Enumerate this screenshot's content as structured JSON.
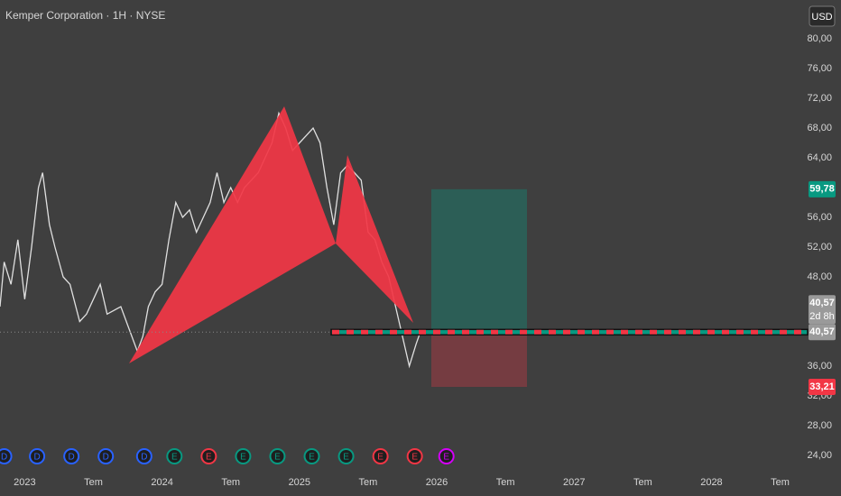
{
  "chart_data": {
    "type": "line",
    "title": "Kemper Corporation · 1H · NYSE",
    "currency": "USD",
    "color": "#e0e0e0",
    "x": [
      2022.82,
      2022.85,
      2022.9,
      2022.95,
      2023.0,
      2023.05,
      2023.1,
      2023.13,
      2023.18,
      2023.22,
      2023.28,
      2023.33,
      2023.4,
      2023.45,
      2023.5,
      2023.55,
      2023.6,
      2023.7,
      2023.78,
      2023.82,
      2023.86,
      2023.9,
      2023.95,
      2024.0,
      2024.05,
      2024.1,
      2024.15,
      2024.2,
      2024.25,
      2024.3,
      2024.35,
      2024.4,
      2024.45,
      2024.5,
      2024.55,
      2024.6,
      2024.7,
      2024.8,
      2024.85,
      2024.9,
      2024.95,
      2025.0,
      2025.05,
      2025.1,
      2025.15,
      2025.2,
      2025.25,
      2025.3,
      2025.35,
      2025.4,
      2025.45,
      2025.5,
      2025.55,
      2025.6,
      2025.65,
      2025.7,
      2025.75,
      2025.8,
      2025.85,
      2025.88
    ],
    "values": [
      44,
      50,
      47,
      53,
      45,
      52,
      60,
      62,
      55,
      52,
      48,
      47,
      42,
      43,
      45,
      47,
      43,
      44,
      40,
      38,
      40,
      44,
      46,
      47,
      53,
      58,
      56,
      57,
      54,
      56,
      58,
      62,
      58,
      60,
      58,
      60,
      62,
      66,
      70,
      68,
      65,
      66,
      67,
      68,
      66,
      60,
      55,
      62,
      63,
      62,
      61,
      54,
      53,
      50,
      48,
      44,
      40,
      36,
      39,
      40.57
    ],
    "xlim": [
      2022.82,
      2028.7
    ],
    "ylim": [
      24,
      80
    ],
    "xticks": [
      2023,
      {
        "value": 2023.5,
        "label": "Tem"
      },
      2024,
      {
        "value": 2024.5,
        "label": "Tem"
      },
      2025,
      {
        "value": 2025.5,
        "label": "Tem"
      },
      2026,
      {
        "value": 2026.5,
        "label": "Tem"
      },
      2027,
      {
        "value": 2027.5,
        "label": "Tem"
      },
      2028,
      {
        "value": 2028.5,
        "label": "Tem"
      }
    ],
    "yticks": [
      {
        "value": 80,
        "label": "80,00"
      },
      {
        "value": 76,
        "label": "76,00"
      },
      {
        "value": 72,
        "label": "72,00"
      },
      {
        "value": 68,
        "label": "68,00"
      },
      {
        "value": 64,
        "label": "64,00"
      },
      {
        "value": 56,
        "label": "56,00"
      },
      {
        "value": 52,
        "label": "52,00"
      },
      {
        "value": 48,
        "label": "48,00"
      },
      {
        "value": 36,
        "label": "36,00"
      },
      {
        "value": 32,
        "label": "32,00"
      },
      {
        "value": 28,
        "label": "28,00"
      },
      {
        "value": 24,
        "label": "24,00"
      }
    ],
    "target": {
      "value": 59.78,
      "label": "59,78"
    },
    "stop": {
      "value": 33.21,
      "label": "33,21"
    },
    "last": {
      "value": 40.57,
      "label": "40,57"
    },
    "countdown": "2d 8h",
    "events": [
      {
        "t": 2022.85,
        "label": "D",
        "color": "#2962ff"
      },
      {
        "t": 2023.09,
        "label": "D",
        "color": "#2962ff"
      },
      {
        "t": 2023.34,
        "label": "D",
        "color": "#2962ff"
      },
      {
        "t": 2023.59,
        "label": "D",
        "color": "#2962ff"
      },
      {
        "t": 2023.87,
        "label": "D",
        "color": "#2962ff"
      },
      {
        "t": 2024.09,
        "label": "E",
        "color": "#089981"
      },
      {
        "t": 2024.34,
        "label": "E",
        "color": "#f23645"
      },
      {
        "t": 2024.59,
        "label": "E",
        "color": "#089981"
      },
      {
        "t": 2024.84,
        "label": "E",
        "color": "#089981"
      },
      {
        "t": 2025.09,
        "label": "E",
        "color": "#089981"
      },
      {
        "t": 2025.34,
        "label": "E",
        "color": "#089981"
      },
      {
        "t": 2025.59,
        "label": "E",
        "color": "#f23645"
      },
      {
        "t": 2025.84,
        "label": "E",
        "color": "#f23645"
      },
      {
        "t": 2026.07,
        "label": "E",
        "color": "#d500f9"
      }
    ]
  }
}
